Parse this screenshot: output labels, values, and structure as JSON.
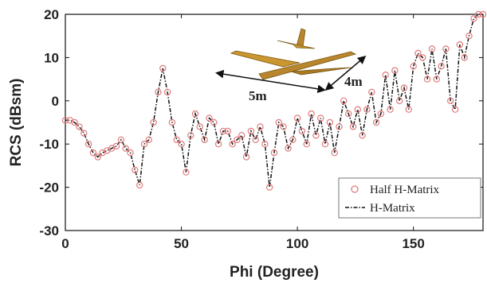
{
  "chart_data": {
    "type": "line",
    "xlabel": "Phi (Degree)",
    "ylabel": "RCS (dBsm)",
    "xlim": [
      0,
      180
    ],
    "ylim": [
      -30,
      20
    ],
    "xticks": [
      0,
      50,
      100,
      150
    ],
    "yticks": [
      -30,
      -20,
      -10,
      0,
      10,
      20
    ],
    "grid": false,
    "legend_position": "bottom-right",
    "series": [
      {
        "name": "Half H-Matrix",
        "style": "markers",
        "marker": "circle",
        "color": "#e07a7a",
        "x": [
          0,
          2,
          4,
          6,
          8,
          10,
          12,
          14,
          16,
          18,
          20,
          22,
          24,
          26,
          28,
          30,
          32,
          34,
          36,
          38,
          40,
          42,
          44,
          46,
          48,
          50,
          52,
          54,
          56,
          58,
          60,
          62,
          64,
          66,
          68,
          70,
          72,
          74,
          76,
          78,
          80,
          82,
          84,
          86,
          88,
          90,
          92,
          94,
          96,
          98,
          100,
          102,
          104,
          106,
          108,
          110,
          112,
          114,
          116,
          118,
          120,
          122,
          124,
          126,
          128,
          130,
          132,
          134,
          136,
          138,
          140,
          142,
          144,
          146,
          148,
          150,
          152,
          154,
          156,
          158,
          160,
          162,
          164,
          166,
          168,
          170,
          172,
          174,
          176,
          178,
          180
        ],
        "y": [
          -4.5,
          -4.5,
          -5,
          -6,
          -7.5,
          -10,
          -12,
          -13,
          -12,
          -11.5,
          -11,
          -10.5,
          -9,
          -11,
          -12,
          -16,
          -19.5,
          -10,
          -9,
          -5,
          2,
          7.5,
          2,
          -5,
          -9,
          -10,
          -16.5,
          -8,
          -3,
          -6,
          -9,
          -4,
          -5,
          -10,
          -7,
          -7,
          -10,
          -9,
          -8,
          -13,
          -7,
          -9,
          -6,
          -10,
          -20,
          -12,
          -5,
          -6,
          -11,
          -9,
          -4,
          -7,
          -10,
          -3,
          -8,
          -4,
          -10,
          -5,
          -12,
          -6,
          0,
          -3,
          -6,
          -2,
          -8,
          -2,
          2,
          -5,
          -3,
          6,
          -2,
          7,
          0,
          3,
          -2,
          8,
          11,
          10,
          5,
          12,
          5,
          8,
          12,
          0,
          -2,
          13,
          10,
          15,
          19,
          20,
          20
        ]
      },
      {
        "name": "H-Matrix",
        "style": "dashdot",
        "color": "#111111",
        "x": [
          0,
          2,
          4,
          6,
          8,
          10,
          12,
          14,
          16,
          18,
          20,
          22,
          24,
          26,
          28,
          30,
          32,
          34,
          36,
          38,
          40,
          42,
          44,
          46,
          48,
          50,
          52,
          54,
          56,
          58,
          60,
          62,
          64,
          66,
          68,
          70,
          72,
          74,
          76,
          78,
          80,
          82,
          84,
          86,
          88,
          90,
          92,
          94,
          96,
          98,
          100,
          102,
          104,
          106,
          108,
          110,
          112,
          114,
          116,
          118,
          120,
          122,
          124,
          126,
          128,
          130,
          132,
          134,
          136,
          138,
          140,
          142,
          144,
          146,
          148,
          150,
          152,
          154,
          156,
          158,
          160,
          162,
          164,
          166,
          168,
          170,
          172,
          174,
          176,
          178,
          180
        ],
        "y": [
          -4.5,
          -4.5,
          -5,
          -6,
          -7.5,
          -10,
          -12,
          -13,
          -12,
          -11.5,
          -11,
          -10.5,
          -9,
          -11,
          -12,
          -16,
          -19.5,
          -10,
          -9,
          -5,
          2,
          7.5,
          2,
          -5,
          -9,
          -10,
          -16.5,
          -8,
          -3,
          -6,
          -9,
          -4,
          -5,
          -10,
          -7,
          -7,
          -10,
          -9,
          -8,
          -13,
          -7,
          -9,
          -6,
          -10,
          -20,
          -12,
          -5,
          -6,
          -11,
          -9,
          -4,
          -7,
          -10,
          -3,
          -8,
          -4,
          -10,
          -5,
          -12,
          -6,
          0,
          -3,
          -6,
          -2,
          -8,
          -2,
          2,
          -5,
          -3,
          6,
          -2,
          7,
          0,
          3,
          -2,
          8,
          11,
          10,
          5,
          12,
          5,
          8,
          12,
          0,
          -2,
          13,
          10,
          15,
          19,
          20,
          20
        ]
      }
    ],
    "annotations": [
      {
        "text": "5m"
      },
      {
        "text": "4m"
      }
    ]
  }
}
